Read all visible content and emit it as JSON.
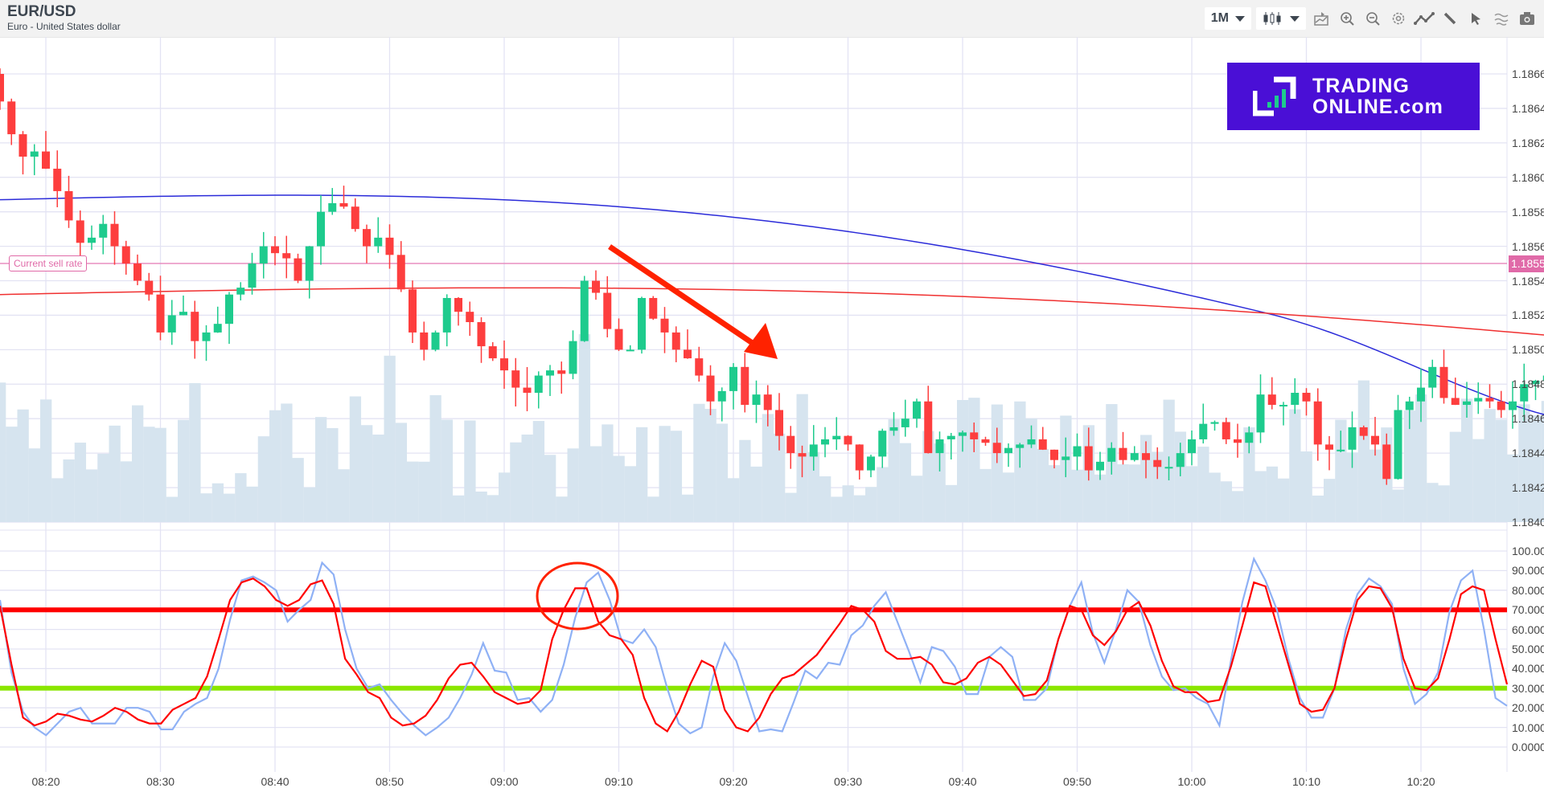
{
  "header": {
    "symbol": "EUR/USD",
    "description": "Euro - United States dollar",
    "timeframe": "1M",
    "toolbar_icons": [
      "candlestick-type-icon",
      "indicators-icon",
      "zoom-in-icon",
      "zoom-out-icon",
      "settings-icon",
      "line-draw-icon",
      "pencil-icon",
      "cursor-icon",
      "patterns-icon",
      "camera-icon"
    ]
  },
  "logo": {
    "line1": "TRADING",
    "line2": "ONLINE.com",
    "bg": "#4a0fd6"
  },
  "sell_rate": {
    "label": "Current sell rate",
    "value": "1.1855",
    "color": "#e06aa8"
  },
  "colors": {
    "up": "#1ecb8d",
    "down": "#fd3e3e",
    "ma_fast": "#2b2bd9",
    "ma_slow": "#f03030",
    "volume": "#d6e4ef",
    "stoch_k": "#8fb1f5",
    "stoch_d": "#ff0000",
    "overbought": "#ff0000",
    "oversold": "#8ae600",
    "annotation": "#ff2200"
  },
  "chart_data": [
    {
      "type": "candlestick",
      "title": "EUR/USD 1M",
      "ylabel": "Price",
      "ylim": [
        1.184,
        1.1867
      ],
      "yticks": [
        "1.1866",
        "1.1864",
        "1.1862",
        "1.1860",
        "1.1858",
        "1.1856",
        "1.1854",
        "1.1852",
        "1.1850",
        "1.1848",
        "1.1846",
        "1.1844",
        "1.1842",
        "1.1840"
      ],
      "x_ticks": [
        "08:20",
        "08:30",
        "08:40",
        "08:50",
        "09:00",
        "09:10",
        "09:20",
        "09:30",
        "09:40",
        "09:50",
        "10:00",
        "10:10",
        "10:20"
      ],
      "first_candle_time": "08:16",
      "close": [
        1.18644,
        1.18625,
        1.18612,
        1.18615,
        1.18605,
        1.18592,
        1.18575,
        1.18562,
        1.18565,
        1.18573,
        1.1856,
        1.1855,
        1.1854,
        1.18532,
        1.1851,
        1.1852,
        1.18522,
        1.18505,
        1.1851,
        1.18515,
        1.18532,
        1.18536,
        1.1855,
        1.1856,
        1.18556,
        1.18553,
        1.1854,
        1.1856,
        1.1858,
        1.18585,
        1.18583,
        1.1857,
        1.1856,
        1.18565,
        1.18555,
        1.18535,
        1.1851,
        1.185,
        1.1851,
        1.1853,
        1.18522,
        1.18516,
        1.18502,
        1.18495,
        1.18488,
        1.18478,
        1.18475,
        1.18485,
        1.18488,
        1.18486,
        1.18505,
        1.1854,
        1.18533,
        1.18512,
        1.185,
        1.185,
        1.1853,
        1.18518,
        1.1851,
        1.185,
        1.18495,
        1.18485,
        1.1847,
        1.18476,
        1.1849,
        1.18468,
        1.18474,
        1.18465,
        1.1845,
        1.1844,
        1.18438,
        1.18445,
        1.18448,
        1.1845,
        1.18445,
        1.1843,
        1.18438,
        1.18453,
        1.18455,
        1.1846,
        1.1847,
        1.1844,
        1.18448,
        1.1845,
        1.18452,
        1.18448,
        1.18446,
        1.1844,
        1.18443,
        1.18445,
        1.18448,
        1.18442,
        1.18436,
        1.18438,
        1.18444,
        1.1843,
        1.18435,
        1.18443,
        1.18436,
        1.1844,
        1.18436,
        1.18432,
        1.18432,
        1.1844,
        1.18448,
        1.18457,
        1.18458,
        1.18448,
        1.18446,
        1.18452,
        1.18474,
        1.18468,
        1.18468,
        1.18475,
        1.1847,
        1.18445,
        1.18442,
        1.18442,
        1.18455,
        1.1845,
        1.18445,
        1.18425,
        1.18465,
        1.1847,
        1.18478,
        1.1849,
        1.18472,
        1.18468,
        1.1847,
        1.18472,
        1.1847,
        1.18465,
        1.1847,
        1.1848,
        1.18482,
        1.18485,
        1.1848,
        1.1847,
        1.18474,
        1.1848,
        1.18487,
        1.18482,
        1.18485,
        1.18491,
        1.1848,
        1.18475,
        1.18472,
        1.18478
      ],
      "volume_scale_note": "relative bar heights",
      "ma_fast_start": 1.18587,
      "ma_fast_end": 1.18472,
      "ma_slow_start": 1.18532,
      "ma_slow_end": 1.18495
    },
    {
      "type": "line",
      "title": "Stochastic oscillator",
      "ylim": [
        0,
        100
      ],
      "yticks": [
        "100.00",
        "90.000",
        "80.000",
        "70.000",
        "60.000",
        "50.000",
        "40.000",
        "30.000",
        "20.000",
        "10.000",
        "0.0000"
      ],
      "levels": {
        "overbought": 70,
        "oversold": 30
      },
      "series": [
        {
          "name": "%K",
          "values": [
            75,
            38,
            18,
            10,
            6,
            12,
            18,
            20,
            12,
            12,
            12,
            20,
            20,
            18,
            9,
            9,
            18,
            22,
            25,
            40,
            65,
            85,
            87,
            84,
            80,
            64,
            70,
            75,
            94,
            88,
            60,
            40,
            30,
            32,
            24,
            17,
            11,
            6,
            10,
            15,
            25,
            37,
            53,
            39,
            38,
            24,
            25,
            18,
            24,
            42,
            66,
            84,
            89,
            75,
            55,
            53,
            60,
            51,
            30,
            12,
            7,
            10,
            36,
            53,
            44,
            26,
            8,
            9,
            8,
            23,
            39,
            35,
            43,
            42,
            57,
            62,
            72,
            79,
            64,
            49,
            33,
            51,
            49,
            41,
            27,
            27,
            46,
            51,
            46,
            24,
            24,
            30,
            55,
            72,
            84,
            58,
            43,
            60,
            80,
            74,
            52,
            36,
            29,
            30,
            25,
            22,
            11,
            44,
            74,
            96,
            85,
            70,
            45,
            25,
            15,
            15,
            30,
            60,
            78,
            86,
            82,
            73,
            40,
            22,
            27,
            38,
            69,
            85,
            90,
            60,
            25,
            21
          ]
        },
        {
          "name": "%D",
          "values": [
            72,
            42,
            15,
            11,
            13,
            17,
            16,
            14,
            13,
            16,
            20,
            18,
            14,
            12,
            12,
            19,
            22,
            25,
            36,
            55,
            75,
            84,
            86,
            82,
            75,
            72,
            75,
            83,
            85,
            73,
            45,
            37,
            28,
            25,
            15,
            11,
            12,
            16,
            24,
            35,
            42,
            43,
            36,
            28,
            25,
            22,
            23,
            29,
            55,
            70,
            81,
            81,
            64,
            57,
            55,
            47,
            25,
            12,
            8,
            18,
            32,
            44,
            41,
            19,
            10,
            8,
            15,
            27,
            35,
            37,
            42,
            47,
            55,
            63,
            72,
            70,
            64,
            49,
            45,
            45,
            46,
            42,
            33,
            32,
            35,
            43,
            46,
            42,
            34,
            26,
            27,
            34,
            55,
            72,
            70,
            57,
            52,
            59,
            70,
            74,
            62,
            44,
            31,
            28,
            28,
            23,
            24,
            41,
            62,
            84,
            82,
            62,
            42,
            22,
            18,
            19,
            30,
            55,
            75,
            82,
            81,
            71,
            45,
            30,
            29,
            35,
            55,
            78,
            82,
            80,
            55,
            32
          ]
        }
      ]
    }
  ]
}
